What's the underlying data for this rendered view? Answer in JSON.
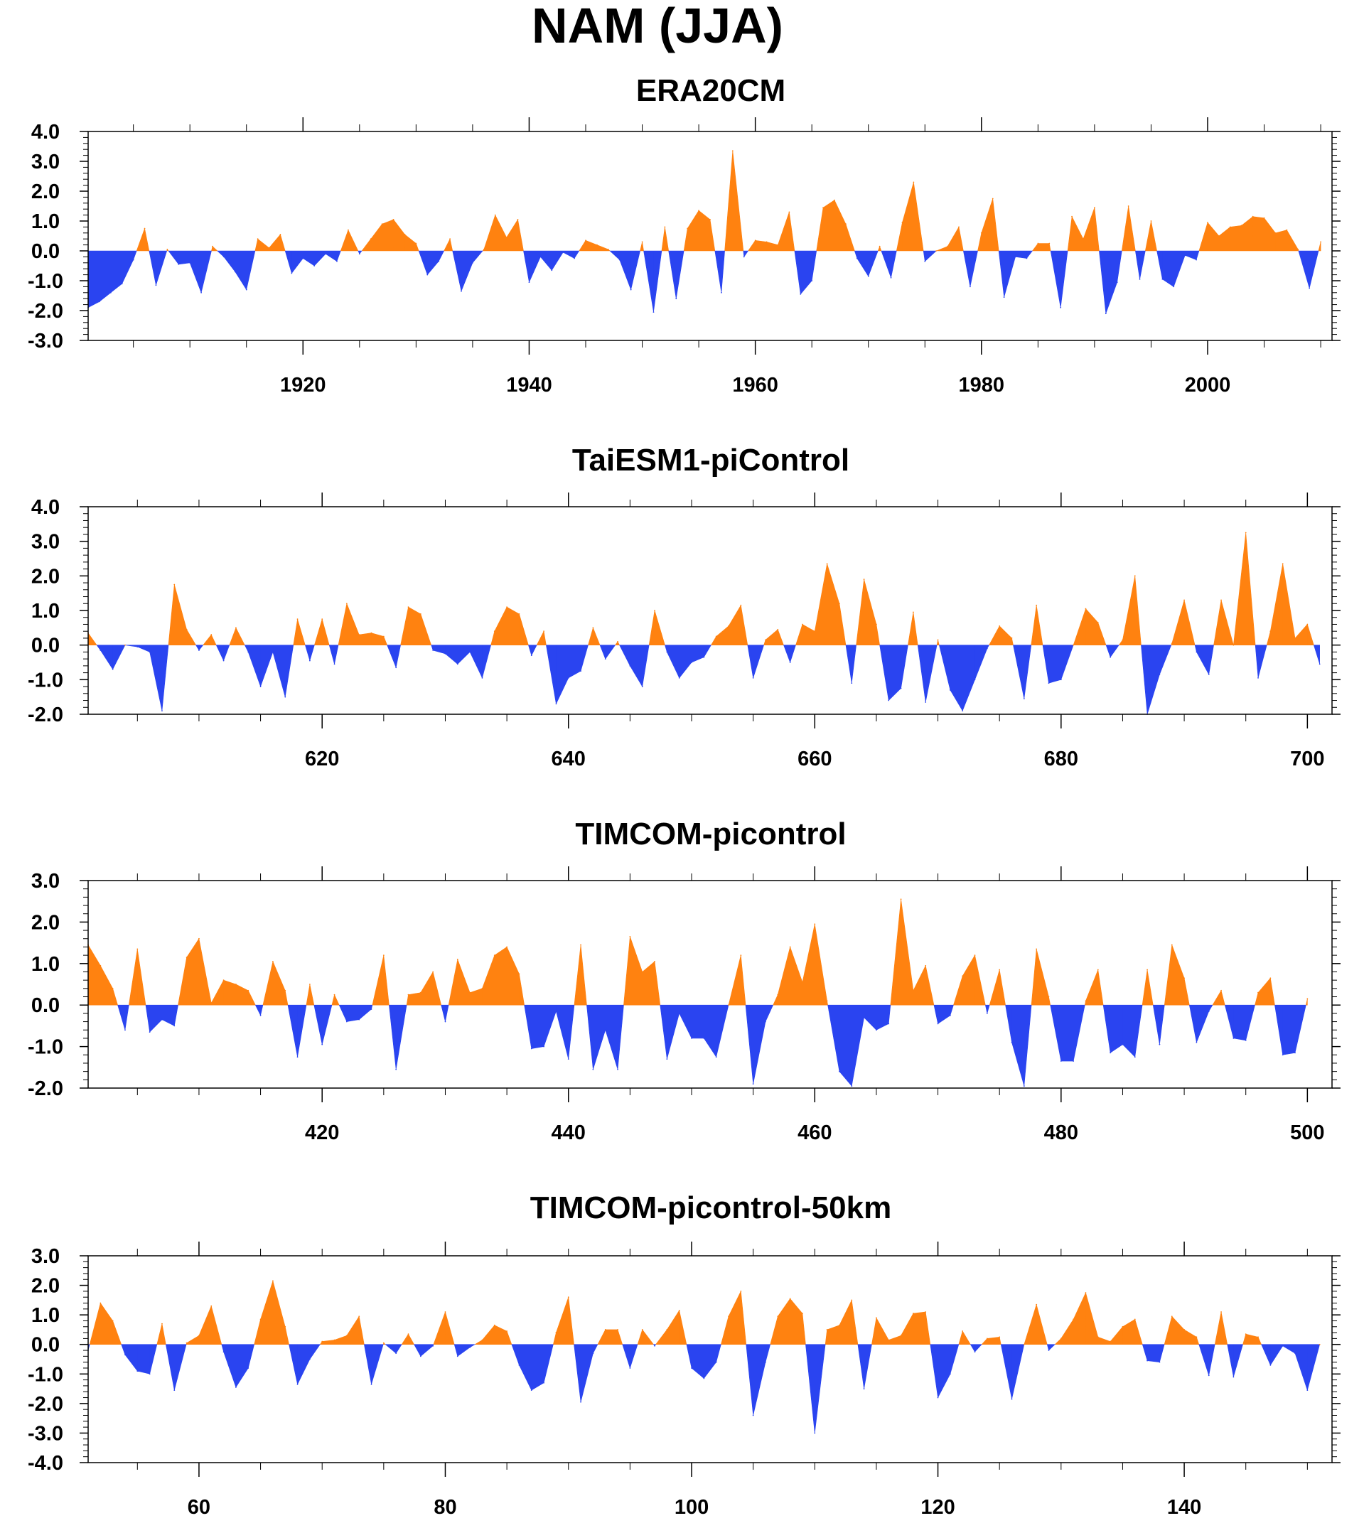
{
  "title": "NAM (JJA)",
  "colors": {
    "positive": "#ff8210",
    "negative": "#2a44f0",
    "axis": "#000000"
  },
  "chart_data": [
    {
      "type": "area",
      "title": "ERA20CM",
      "xlim": [
        1901,
        2011
      ],
      "ylim": [
        -3.0,
        4.0
      ],
      "xticks": [
        1920,
        1940,
        1960,
        1980,
        2000
      ],
      "xtick_labels": [
        "1920",
        "1940",
        "1960",
        "1980",
        "2000"
      ],
      "yticks": [
        -3.0,
        -2.0,
        -1.0,
        0.0,
        1.0,
        2.0,
        3.0,
        4.0
      ],
      "ytick_labels": [
        "-3.0",
        "-2.0",
        "-1.0",
        "0.0",
        "1.0",
        "2.0",
        "3.0",
        "4.0"
      ],
      "x_start": 1901,
      "values": [
        -1.9,
        -1.7,
        -1.4,
        -1.1,
        -0.3,
        0.75,
        -1.15,
        0.05,
        -0.45,
        -0.4,
        -1.4,
        0.15,
        -0.2,
        -0.7,
        -1.3,
        0.4,
        0.1,
        0.55,
        -0.75,
        -0.25,
        -0.5,
        -0.1,
        -0.35,
        0.7,
        -0.1,
        0.4,
        0.9,
        1.05,
        0.55,
        0.25,
        -0.8,
        -0.35,
        0.4,
        -1.35,
        -0.4,
        0.05,
        1.2,
        0.45,
        1.05,
        -1.05,
        -0.2,
        -0.65,
        -0.05,
        -0.25,
        0.35,
        0.2,
        0.05,
        -0.3,
        -1.3,
        0.3,
        -2.05,
        0.8,
        -1.6,
        0.75,
        1.35,
        1.05,
        -1.4,
        3.35,
        -0.2,
        0.35,
        0.3,
        0.2,
        1.3,
        -1.45,
        -1.0,
        1.45,
        1.7,
        0.9,
        -0.25,
        -0.85,
        0.15,
        -0.9,
        0.95,
        2.3,
        -0.35,
        0.0,
        0.15,
        0.8,
        -1.2,
        0.6,
        1.75,
        -1.55,
        -0.2,
        -0.25,
        0.25,
        0.25,
        -1.9,
        1.15,
        0.4,
        1.45,
        -2.1,
        -1.05,
        1.5,
        -0.95,
        1.0,
        -0.95,
        -1.2,
        -0.15,
        -0.3,
        0.95,
        0.5,
        0.8,
        0.85,
        1.15,
        1.1,
        0.6,
        0.7,
        0.05,
        -1.25,
        0.3
      ]
    },
    {
      "type": "area",
      "title": "TaiESM1-piControl",
      "xlim": [
        601,
        702
      ],
      "ylim": [
        -2.0,
        4.0
      ],
      "xticks": [
        620,
        640,
        660,
        680,
        700
      ],
      "xtick_labels": [
        "620",
        "640",
        "660",
        "680",
        "700"
      ],
      "yticks": [
        -2.0,
        -1.0,
        0.0,
        1.0,
        2.0,
        3.0,
        4.0
      ],
      "ytick_labels": [
        "-2.0",
        "-1.0",
        "0.0",
        "1.0",
        "2.0",
        "3.0",
        "4.0"
      ],
      "x_start": 601,
      "values": [
        0.35,
        -0.15,
        -0.7,
        0.0,
        -0.05,
        -0.2,
        -1.9,
        1.75,
        0.45,
        -0.15,
        0.3,
        -0.45,
        0.5,
        -0.2,
        -1.2,
        -0.2,
        -1.5,
        0.75,
        -0.45,
        0.75,
        -0.55,
        1.2,
        0.3,
        0.35,
        0.25,
        -0.65,
        1.1,
        0.9,
        -0.15,
        -0.25,
        -0.55,
        -0.2,
        -0.95,
        0.4,
        1.1,
        0.9,
        -0.3,
        0.4,
        -1.7,
        -0.95,
        -0.75,
        0.5,
        -0.4,
        0.1,
        -0.6,
        -1.2,
        1.0,
        -0.2,
        -0.95,
        -0.5,
        -0.35,
        0.25,
        0.55,
        1.15,
        -0.95,
        0.15,
        0.45,
        -0.5,
        0.6,
        0.4,
        2.35,
        1.2,
        -1.1,
        1.9,
        0.6,
        -1.6,
        -1.25,
        0.95,
        -1.65,
        0.15,
        -1.3,
        -1.9,
        -1.0,
        -0.1,
        0.55,
        0.2,
        -1.55,
        1.15,
        -1.1,
        -1.0,
        0.0,
        1.05,
        0.65,
        -0.35,
        0.15,
        2.0,
        -2.0,
        -0.85,
        0.05,
        1.3,
        -0.2,
        -0.85,
        1.3,
        0.0,
        3.25,
        -0.95,
        0.4,
        2.35,
        0.2,
        0.6,
        -0.55
      ]
    },
    {
      "type": "area",
      "title": "TIMCOM-picontrol",
      "xlim": [
        401,
        502
      ],
      "ylim": [
        -2.0,
        3.0
      ],
      "xticks": [
        420,
        440,
        460,
        480,
        500
      ],
      "xtick_labels": [
        "420",
        "440",
        "460",
        "480",
        "500"
      ],
      "yticks": [
        -2.0,
        -1.0,
        0.0,
        1.0,
        2.0,
        3.0
      ],
      "ytick_labels": [
        "-2.0",
        "-1.0",
        "0.0",
        "1.0",
        "2.0",
        "3.0"
      ],
      "x_start": 401,
      "values": [
        1.45,
        0.95,
        0.4,
        -0.6,
        1.35,
        -0.65,
        -0.35,
        -0.5,
        1.15,
        1.6,
        0.05,
        0.6,
        0.5,
        0.35,
        -0.25,
        1.05,
        0.35,
        -1.25,
        0.5,
        -0.95,
        0.25,
        -0.4,
        -0.35,
        -0.1,
        1.2,
        -1.55,
        0.25,
        0.3,
        0.8,
        -0.4,
        1.1,
        0.3,
        0.4,
        1.2,
        1.4,
        0.75,
        -1.05,
        -1.0,
        -0.15,
        -1.3,
        1.45,
        -1.55,
        -0.6,
        -1.55,
        1.65,
        0.8,
        1.05,
        -1.3,
        -0.2,
        -0.8,
        -0.8,
        -1.25,
        0.0,
        1.2,
        -1.9,
        -0.4,
        0.25,
        1.4,
        0.55,
        1.95,
        0.1,
        -1.6,
        -1.95,
        -0.3,
        -0.6,
        -0.45,
        2.55,
        0.35,
        0.95,
        -0.45,
        -0.25,
        0.7,
        1.2,
        -0.2,
        0.85,
        -0.9,
        -1.95,
        1.35,
        0.2,
        -1.35,
        -1.35,
        0.1,
        0.85,
        -1.15,
        -0.95,
        -1.25,
        0.85,
        -0.95,
        1.45,
        0.65,
        -0.9,
        -0.15,
        0.35,
        -0.8,
        -0.85,
        0.3,
        0.65,
        -1.2,
        -1.15,
        0.15
      ]
    },
    {
      "type": "area",
      "title": "TIMCOM-picontrol-50km",
      "xlim": [
        51,
        152
      ],
      "ylim": [
        -4.0,
        3.0
      ],
      "xticks": [
        60,
        80,
        100,
        120,
        140
      ],
      "xtick_labels": [
        "60",
        "80",
        "100",
        "120",
        "140"
      ],
      "yticks": [
        -4.0,
        -3.0,
        -2.0,
        -1.0,
        0.0,
        1.0,
        2.0,
        3.0
      ],
      "ytick_labels": [
        "-4.0",
        "-3.0",
        "-2.0",
        "-1.0",
        "0.0",
        "1.0",
        "2.0",
        "3.0"
      ],
      "x_start": 51,
      "values": [
        -0.2,
        1.4,
        0.8,
        -0.35,
        -0.9,
        -1.0,
        0.7,
        -1.55,
        0.05,
        0.3,
        1.3,
        -0.25,
        -1.45,
        -0.8,
        0.85,
        2.15,
        0.6,
        -1.35,
        -0.5,
        0.1,
        0.15,
        0.3,
        0.95,
        -1.35,
        0.05,
        -0.3,
        0.35,
        -0.4,
        -0.05,
        1.1,
        -0.4,
        -0.1,
        0.15,
        0.65,
        0.45,
        -0.7,
        -1.55,
        -1.3,
        0.4,
        1.6,
        -1.95,
        -0.3,
        0.5,
        0.5,
        -0.8,
        0.5,
        -0.05,
        0.5,
        1.15,
        -0.8,
        -1.15,
        -0.6,
        0.95,
        1.8,
        -2.4,
        -0.6,
        0.95,
        1.55,
        1.05,
        -3.0,
        0.5,
        0.65,
        1.5,
        -1.5,
        0.9,
        0.15,
        0.3,
        1.05,
        1.1,
        -1.8,
        -1.0,
        0.45,
        -0.25,
        0.2,
        0.25,
        -1.85,
        0.0,
        1.35,
        -0.2,
        0.2,
        0.85,
        1.75,
        0.25,
        0.1,
        0.6,
        0.85,
        -0.55,
        -0.6,
        0.95,
        0.5,
        0.25,
        -1.05,
        1.1,
        -1.1,
        0.35,
        0.25,
        -0.7,
        -0.05,
        -0.3,
        -1.55,
        0.0
      ]
    }
  ]
}
